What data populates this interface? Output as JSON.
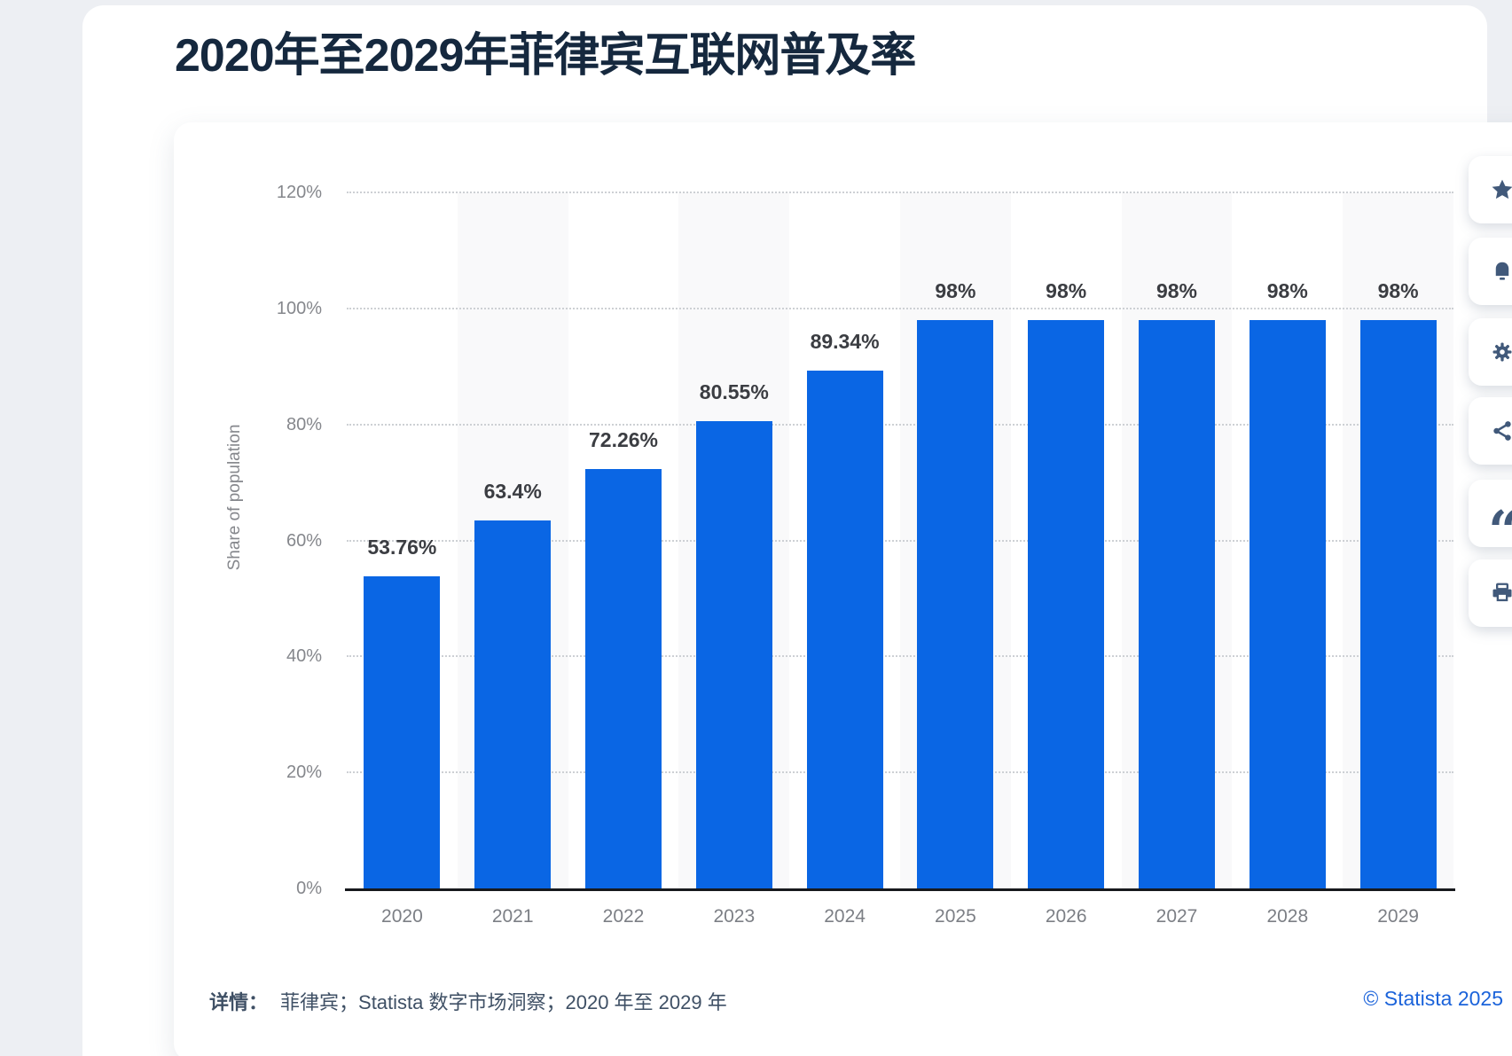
{
  "page": {
    "title": "2020年至2029年菲律宾互联网普及率"
  },
  "chart_data": {
    "type": "bar",
    "title": "2020年至2029年菲律宾互联网普及率",
    "categories": [
      "2020",
      "2021",
      "2022",
      "2023",
      "2024",
      "2025",
      "2026",
      "2027",
      "2028",
      "2029"
    ],
    "values": [
      53.76,
      63.4,
      72.26,
      80.55,
      89.34,
      98,
      98,
      98,
      98,
      98
    ],
    "value_labels": [
      "53.76%",
      "63.4%",
      "72.26%",
      "80.55%",
      "89.34%",
      "98%",
      "98%",
      "98%",
      "98%",
      "98%"
    ],
    "xlabel": "",
    "ylabel": "Share of population",
    "y_ticks": [
      "0%",
      "20%",
      "40%",
      "60%",
      "80%",
      "100%",
      "120%"
    ],
    "ylim": [
      0,
      120
    ],
    "grid": "horizontal dotted gridlines, alternating light column stripes",
    "legend": "none",
    "bar_color": "#0a66e4",
    "stripe_columns": [
      1,
      3,
      5,
      7,
      9
    ]
  },
  "toolbar": {
    "icons": [
      "star-icon",
      "bell-icon",
      "gear-icon",
      "share-icon",
      "quote-icon",
      "printer-icon"
    ]
  },
  "footer": {
    "details_label": "详情：",
    "details_text": "菲律宾；Statista 数字市场洞察；2020 年至 2029 年",
    "copyright": "© Statista 2025"
  }
}
